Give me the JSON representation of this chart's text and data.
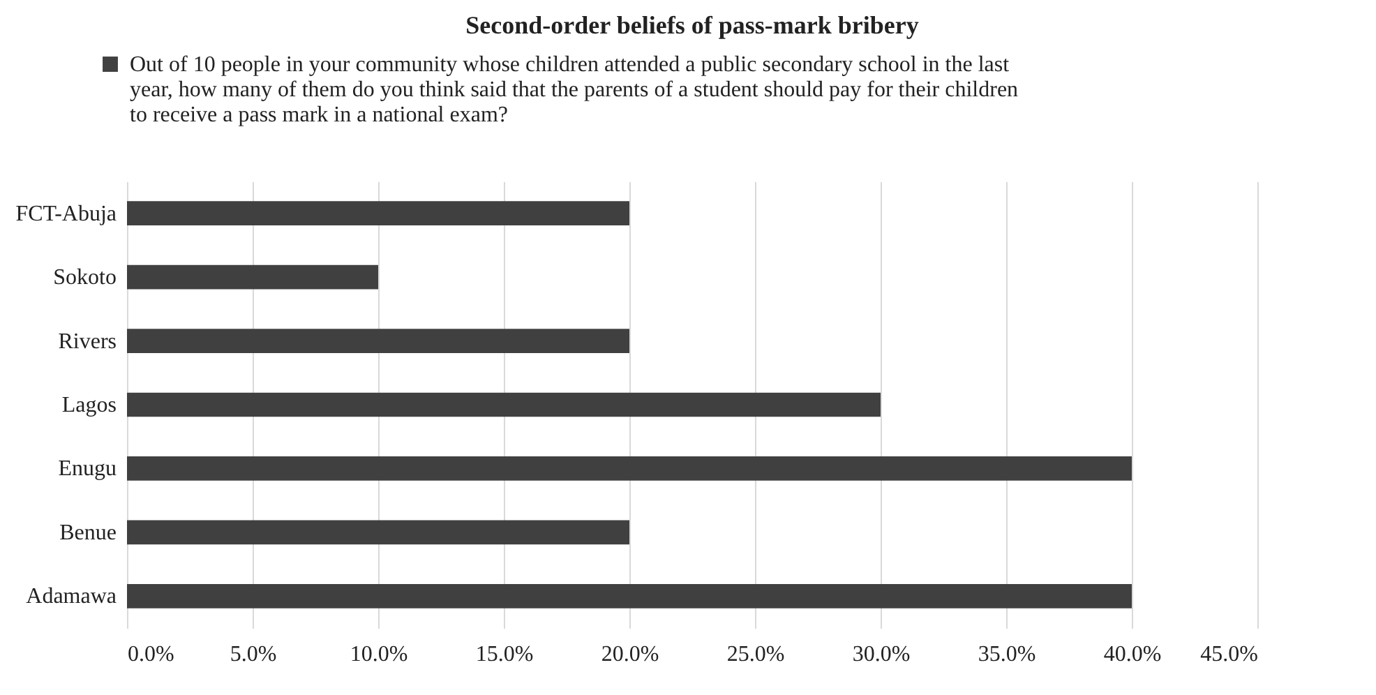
{
  "chart_data": {
    "type": "bar",
    "orientation": "horizontal",
    "title": "Second-order beliefs of pass-mark bribery",
    "categories": [
      "FCT-Abuja",
      "Sokoto",
      "Rivers",
      "Lagos",
      "Enugu",
      "Benue",
      "Adamawa"
    ],
    "series": [
      {
        "name": "Out of 10 people in your community whose children attended a public secondary school in the last year, how many of them do you think said that the parents of a student should pay for their children to receive a pass mark in a national exam?",
        "color": "#404040",
        "values": [
          20,
          10,
          20,
          30,
          40,
          20,
          40
        ]
      }
    ],
    "xlim": [
      0,
      45
    ],
    "xticks": [
      {
        "value": 0,
        "label": "0.0%"
      },
      {
        "value": 5,
        "label": "5.0%"
      },
      {
        "value": 10,
        "label": "10.0%"
      },
      {
        "value": 15,
        "label": "15.0%"
      },
      {
        "value": 20,
        "label": "20.0%"
      },
      {
        "value": 25,
        "label": "25.0%"
      },
      {
        "value": 30,
        "label": "30.0%"
      },
      {
        "value": 35,
        "label": "35.0%"
      },
      {
        "value": 40,
        "label": "40.0%"
      },
      {
        "value": 45,
        "label": "45.0%"
      }
    ],
    "grid": "x",
    "legend": "top left"
  }
}
